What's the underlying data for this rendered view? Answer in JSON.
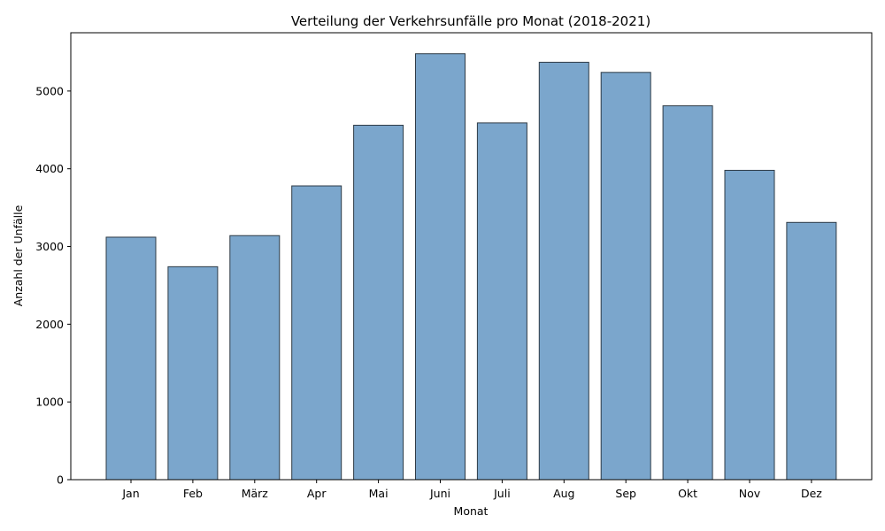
{
  "chart_data": {
    "type": "bar",
    "title": "Verteilung der Verkehrsunfälle pro Monat (2018-2021)",
    "xlabel": "Monat",
    "ylabel": "Anzahl der Unfälle",
    "categories": [
      "Jan",
      "Feb",
      "März",
      "Apr",
      "Mai",
      "Juni",
      "Juli",
      "Aug",
      "Sep",
      "Okt",
      "Nov",
      "Dez"
    ],
    "values": [
      3120,
      2740,
      3140,
      3780,
      4560,
      5480,
      4590,
      5370,
      5240,
      4810,
      3980,
      3310
    ],
    "ylim": [
      0,
      5750
    ],
    "yticks": [
      0,
      1000,
      2000,
      3000,
      4000,
      5000
    ],
    "bar_color": "#7ba6cc",
    "bar_edge_color": "#2e3b46",
    "grid": false
  }
}
